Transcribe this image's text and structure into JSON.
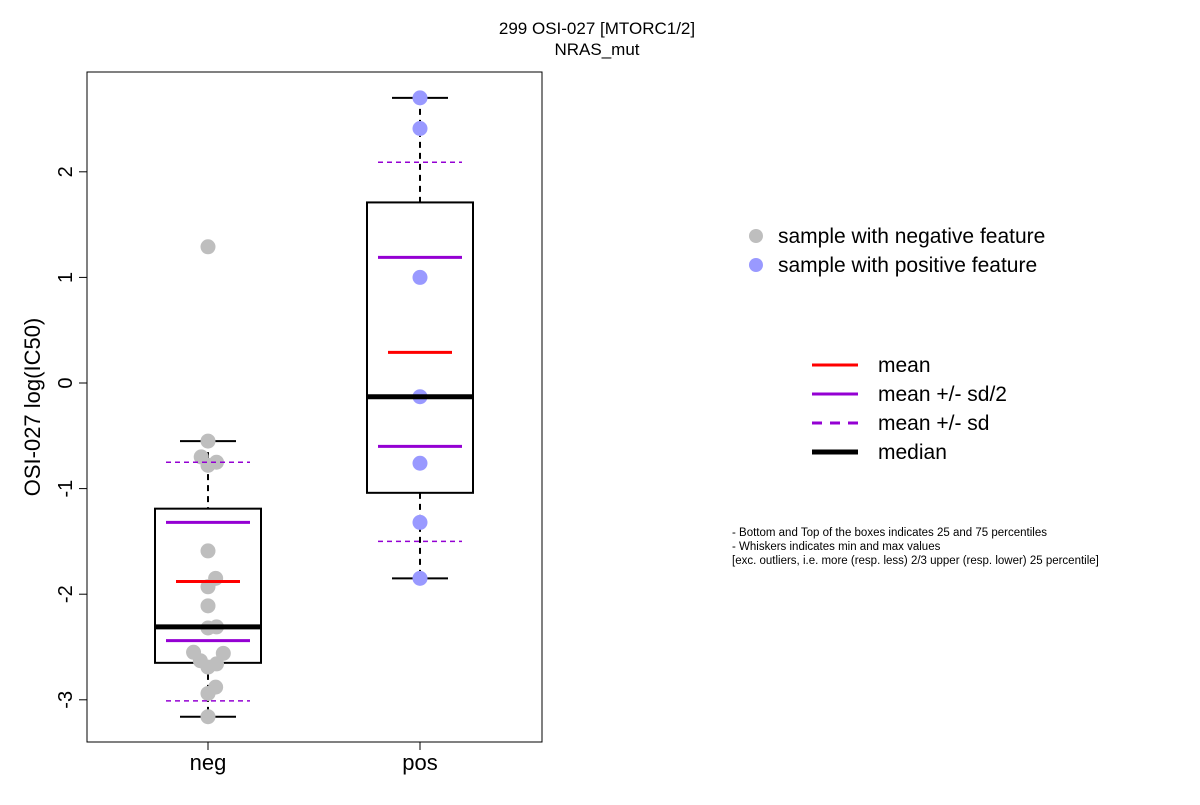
{
  "chart_data": {
    "type": "box",
    "title": "299 OSI-027 [MTORC1/2]",
    "subtitle": "NRAS_mut",
    "xlabel": "",
    "ylabel": "OSI-027 log(IC50)",
    "ylim": [
      -3.4,
      2.9
    ],
    "yticks": [
      -3,
      -2,
      -1,
      0,
      1,
      2
    ],
    "ytick_labels": [
      "-3",
      "-2",
      "-1",
      "0",
      "1",
      "2"
    ],
    "categories": [
      "neg",
      "pos"
    ],
    "groups": [
      {
        "name": "neg",
        "box": {
          "q1": -2.65,
          "q3": -1.19,
          "median": -2.31,
          "whisker_low": -3.16,
          "whisker_high": -0.55
        },
        "mean": -1.88,
        "mean_minus_half_sd": -2.44,
        "mean_plus_half_sd": -1.32,
        "mean_minus_sd": -3.01,
        "mean_plus_sd": -0.75,
        "points": [
          {
            "dx": 0,
            "y": 1.29
          },
          {
            "dx": 0,
            "y": -0.55
          },
          {
            "dx": -0.4,
            "y": -0.7
          },
          {
            "dx": 0,
            "y": -0.78
          },
          {
            "dx": 0.5,
            "y": -0.75
          },
          {
            "dx": 0,
            "y": -1.59
          },
          {
            "dx": 0.45,
            "y": -1.85
          },
          {
            "dx": 0,
            "y": -1.93
          },
          {
            "dx": 0,
            "y": -2.11
          },
          {
            "dx": 0,
            "y": -2.32
          },
          {
            "dx": 0.5,
            "y": -2.31
          },
          {
            "dx": -0.85,
            "y": -2.55
          },
          {
            "dx": -0.45,
            "y": -2.63
          },
          {
            "dx": 0,
            "y": -2.69
          },
          {
            "dx": 0.5,
            "y": -2.66
          },
          {
            "dx": 0.9,
            "y": -2.56
          },
          {
            "dx": 0,
            "y": -2.94
          },
          {
            "dx": 0.45,
            "y": -2.88
          },
          {
            "dx": 0,
            "y": -3.16
          }
        ]
      },
      {
        "name": "pos",
        "box": {
          "q1": -1.04,
          "q3": 1.71,
          "median": -0.13,
          "whisker_low": -1.85,
          "whisker_high": 2.7
        },
        "mean": 0.29,
        "mean_minus_half_sd": -0.6,
        "mean_plus_half_sd": 1.19,
        "mean_minus_sd": -1.5,
        "mean_plus_sd": 2.09,
        "points": [
          {
            "dx": 0,
            "y": 2.7
          },
          {
            "dx": 0,
            "y": 2.41
          },
          {
            "dx": 0,
            "y": 1.0
          },
          {
            "dx": 0,
            "y": -0.13
          },
          {
            "dx": 0,
            "y": -0.76
          },
          {
            "dx": 0,
            "y": -1.32
          },
          {
            "dx": 0,
            "y": -1.85
          }
        ]
      }
    ],
    "legend_points": [
      {
        "label": "sample with negative feature",
        "color": "#bebebe"
      },
      {
        "label": "sample with positive feature",
        "color": "#9999ff"
      }
    ],
    "legend_lines": [
      {
        "label": "mean",
        "color": "#ff0000",
        "style": "solid"
      },
      {
        "label": "mean +/- sd/2",
        "color": "#9400d3",
        "style": "solid"
      },
      {
        "label": "mean +/- sd",
        "color": "#9400d3",
        "style": "dashed"
      },
      {
        "label": "median",
        "color": "#000000",
        "style": "thick"
      }
    ],
    "notes": [
      "- Bottom and Top of the boxes indicates 25 and 75 percentiles",
      "- Whiskers indicates min and max values",
      "[exc. outliers, i.e. more (resp. less) 2/3 upper (resp. lower) 25 percentile]"
    ],
    "colors": {
      "negative_point": "#bebebe",
      "positive_point": "#9999ff",
      "mean": "#ff0000",
      "sd": "#9400d3",
      "median": "#000000"
    }
  }
}
